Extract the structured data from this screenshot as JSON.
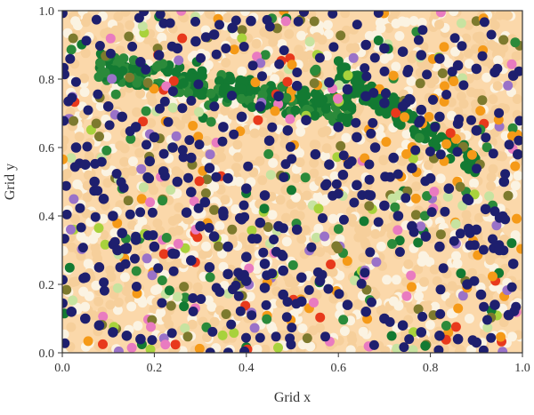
{
  "chart_data": {
    "type": "scatter",
    "title": "",
    "xlabel": "Grid x",
    "ylabel": "Grid y",
    "xlim": [
      0.0,
      1.0
    ],
    "ylim": [
      0.0,
      1.0
    ],
    "grid": false,
    "legend": "none",
    "x_ticks": [
      "0.0",
      "0.2",
      "0.4",
      "0.6",
      "0.8",
      "1.0"
    ],
    "y_ticks": [
      "0.0",
      "0.2",
      "0.4",
      "0.6",
      "0.8",
      "1.0"
    ],
    "x_tick_values": [
      0.0,
      0.2,
      0.4,
      0.6,
      0.8,
      1.0
    ],
    "y_tick_values": [
      0.0,
      0.2,
      0.4,
      0.6,
      0.8,
      1.0
    ],
    "background_color": "#fbd8aa",
    "colors": {
      "navy": "#1e1f6e",
      "olive": "#7d7a2e",
      "dark_green": "#137a32",
      "green": "#2b8a3a",
      "light_green": "#a8d23c",
      "pale_green": "#c7e3a0",
      "orange": "#f59a18",
      "red": "#e8391c",
      "pink": "#e97bc0",
      "purple": "#9a72c8",
      "cream": "#fbf3e2",
      "peach": "#f6cf9b"
    },
    "series": [
      {
        "values": [
          [
            0.27,
            0.41
          ],
          [
            0.3,
            0.37
          ],
          [
            0.33,
            0.34
          ],
          [
            0.36,
            0.31
          ],
          [
            0.4,
            0.28
          ],
          [
            0.44,
            0.26
          ],
          [
            0.48,
            0.24
          ],
          [
            0.52,
            0.22
          ],
          [
            0.56,
            0.21
          ],
          [
            0.19,
            0.56
          ],
          [
            0.22,
            0.53
          ],
          [
            0.25,
            0.5
          ],
          [
            0.28,
            0.47
          ],
          [
            0.31,
            0.44
          ],
          [
            0.35,
            0.41
          ],
          [
            0.39,
            0.39
          ],
          [
            0.43,
            0.38
          ],
          [
            0.47,
            0.37
          ],
          [
            0.51,
            0.36
          ],
          [
            0.13,
            0.35
          ],
          [
            0.16,
            0.33
          ],
          [
            0.2,
            0.31
          ],
          [
            0.24,
            0.29
          ],
          [
            0.28,
            0.27
          ],
          [
            0.32,
            0.25
          ],
          [
            0.36,
            0.23
          ],
          [
            0.4,
            0.21
          ],
          [
            0.44,
            0.19
          ],
          [
            0.48,
            0.17
          ],
          [
            0.52,
            0.15
          ],
          [
            0.1,
            0.72
          ],
          [
            0.13,
            0.69
          ],
          [
            0.16,
            0.66
          ],
          [
            0.2,
            0.63
          ],
          [
            0.24,
            0.6
          ],
          [
            0.28,
            0.57
          ],
          [
            0.32,
            0.54
          ],
          [
            0.36,
            0.51
          ],
          [
            0.4,
            0.48
          ],
          [
            0.44,
            0.46
          ],
          [
            0.55,
            0.58
          ],
          [
            0.58,
            0.55
          ],
          [
            0.61,
            0.52
          ],
          [
            0.64,
            0.49
          ],
          [
            0.67,
            0.46
          ],
          [
            0.7,
            0.43
          ],
          [
            0.73,
            0.4
          ],
          [
            0.76,
            0.37
          ],
          [
            0.79,
            0.34
          ],
          [
            0.82,
            0.31
          ],
          [
            0.6,
            0.66
          ],
          [
            0.64,
            0.63
          ],
          [
            0.68,
            0.6
          ],
          [
            0.72,
            0.57
          ],
          [
            0.76,
            0.54
          ],
          [
            0.8,
            0.51
          ],
          [
            0.84,
            0.48
          ],
          [
            0.88,
            0.45
          ],
          [
            0.92,
            0.42
          ],
          [
            0.58,
            0.79
          ],
          [
            0.62,
            0.77
          ],
          [
            0.66,
            0.75
          ],
          [
            0.7,
            0.73
          ],
          [
            0.74,
            0.72
          ],
          [
            0.78,
            0.71
          ],
          [
            0.82,
            0.69
          ],
          [
            0.86,
            0.67
          ],
          [
            0.9,
            0.65
          ],
          [
            0.66,
            0.9
          ],
          [
            0.7,
            0.89
          ],
          [
            0.74,
            0.88
          ],
          [
            0.78,
            0.87
          ],
          [
            0.82,
            0.86
          ],
          [
            0.86,
            0.84
          ],
          [
            0.9,
            0.83
          ],
          [
            0.94,
            0.82
          ],
          [
            0.98,
            0.81
          ],
          [
            0.02,
            0.12
          ],
          [
            0.05,
            0.1
          ],
          [
            0.08,
            0.08
          ],
          [
            0.11,
            0.06
          ],
          [
            0.14,
            0.05
          ],
          [
            0.17,
            0.04
          ],
          [
            0.62,
            0.14
          ],
          [
            0.66,
            0.12
          ],
          [
            0.7,
            0.1
          ],
          [
            0.74,
            0.08
          ],
          [
            0.78,
            0.06
          ],
          [
            0.82,
            0.05
          ],
          [
            0.86,
            0.04
          ],
          [
            0.9,
            0.03
          ],
          [
            0.03,
            0.6
          ],
          [
            0.05,
            0.55
          ],
          [
            0.07,
            0.5
          ],
          [
            0.09,
            0.45
          ],
          [
            0.11,
            0.4
          ],
          [
            0.12,
            0.3
          ],
          [
            0.08,
            0.25
          ],
          [
            0.05,
            0.22
          ],
          [
            0.35,
            0.66
          ],
          [
            0.39,
            0.69
          ],
          [
            0.43,
            0.72
          ],
          [
            0.47,
            0.75
          ],
          [
            0.51,
            0.78
          ],
          [
            0.45,
            0.62
          ],
          [
            0.49,
            0.65
          ],
          [
            0.53,
            0.68
          ],
          [
            0.17,
            0.85
          ],
          [
            0.21,
            0.87
          ],
          [
            0.25,
            0.89
          ],
          [
            0.29,
            0.91
          ],
          [
            0.33,
            0.93
          ],
          [
            0.37,
            0.95
          ],
          [
            0.41,
            0.97
          ],
          [
            0.88,
            0.2
          ],
          [
            0.91,
            0.17
          ],
          [
            0.94,
            0.14
          ],
          [
            0.97,
            0.11
          ],
          [
            0.95,
            0.3
          ],
          [
            0.98,
            0.26
          ],
          [
            0.9,
            0.36
          ],
          [
            0.96,
            0.5
          ],
          [
            0.99,
            0.58
          ]
        ]
      }
    ]
  }
}
